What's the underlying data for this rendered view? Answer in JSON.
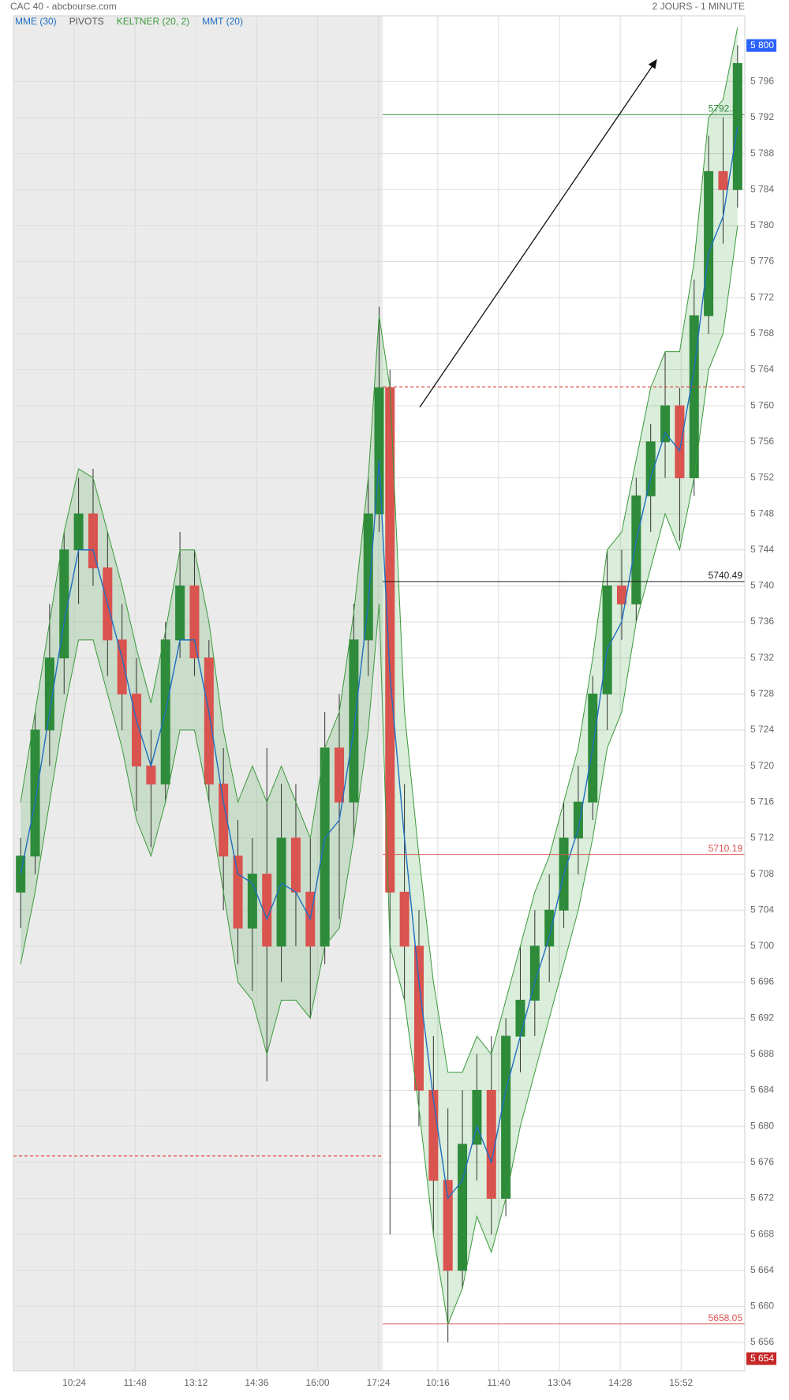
{
  "header": {
    "title": "CAC 40 - abcbourse.com",
    "period": "2 JOURS - 1 MINUTE"
  },
  "chart_data": {
    "type": "candlestick",
    "xlim": [
      0,
      1010
    ],
    "ylim": [
      5652.85,
      5803.3
    ],
    "grid": true,
    "up_color": "#2e8b3a",
    "down_color": "#d9534f",
    "xticks": [
      {
        "value": 84,
        "label": "10:24"
      },
      {
        "value": 168,
        "label": "11:48"
      },
      {
        "value": 252,
        "label": "13:12"
      },
      {
        "value": 336,
        "label": "14:36"
      },
      {
        "value": 420,
        "label": "16:00"
      },
      {
        "value": 504,
        "label": "17:24"
      },
      {
        "value": 586,
        "label": "10:16"
      },
      {
        "value": 670,
        "label": "11:40"
      },
      {
        "value": 754,
        "label": "13:04"
      },
      {
        "value": 838,
        "label": "14:28"
      },
      {
        "value": 922,
        "label": "15:52"
      }
    ],
    "yticks": [
      {
        "value": 5656,
        "label": "5 656"
      },
      {
        "value": 5660,
        "label": "5 660"
      },
      {
        "value": 5664,
        "label": "5 664"
      },
      {
        "value": 5668,
        "label": "5 668"
      },
      {
        "value": 5672,
        "label": "5 672"
      },
      {
        "value": 5676,
        "label": "5 676"
      },
      {
        "value": 5680,
        "label": "5 680"
      },
      {
        "value": 5684,
        "label": "5 684"
      },
      {
        "value": 5688,
        "label": "5 688"
      },
      {
        "value": 5692,
        "label": "5 692"
      },
      {
        "value": 5696,
        "label": "5 696"
      },
      {
        "value": 5700,
        "label": "5 700"
      },
      {
        "value": 5704,
        "label": "5 704"
      },
      {
        "value": 5708,
        "label": "5 708"
      },
      {
        "value": 5712,
        "label": "5 712"
      },
      {
        "value": 5716,
        "label": "5 716"
      },
      {
        "value": 5720,
        "label": "5 720"
      },
      {
        "value": 5724,
        "label": "5 724"
      },
      {
        "value": 5728,
        "label": "5 728"
      },
      {
        "value": 5732,
        "label": "5 732"
      },
      {
        "value": 5736,
        "label": "5 736"
      },
      {
        "value": 5740,
        "label": "5 740"
      },
      {
        "value": 5744,
        "label": "5 744"
      },
      {
        "value": 5748,
        "label": "5 748"
      },
      {
        "value": 5752,
        "label": "5 752"
      },
      {
        "value": 5756,
        "label": "5 756"
      },
      {
        "value": 5760,
        "label": "5 760"
      },
      {
        "value": 5764,
        "label": "5 764"
      },
      {
        "value": 5768,
        "label": "5 768"
      },
      {
        "value": 5772,
        "label": "5 772"
      },
      {
        "value": 5776,
        "label": "5 776"
      },
      {
        "value": 5780,
        "label": "5 780"
      },
      {
        "value": 5784,
        "label": "5 784"
      },
      {
        "value": 5788,
        "label": "5 788"
      },
      {
        "value": 5792,
        "label": "5 792"
      },
      {
        "value": 5796,
        "label": "5 796"
      }
    ],
    "x": [
      10,
      30,
      50,
      70,
      90,
      110,
      130,
      150,
      170,
      190,
      210,
      230,
      250,
      270,
      290,
      310,
      330,
      350,
      370,
      390,
      410,
      430,
      450,
      470,
      490,
      505,
      520,
      540,
      560,
      580,
      600,
      620,
      640,
      660,
      680,
      700,
      720,
      740,
      760,
      780,
      800,
      820,
      840,
      860,
      880,
      900,
      920,
      940,
      960,
      980,
      1000
    ],
    "open": [
      5706,
      5710,
      5724,
      5732,
      5744,
      5748,
      5742,
      5734,
      5728,
      5720,
      5718,
      5734,
      5740,
      5732,
      5718,
      5710,
      5702,
      5708,
      5700,
      5712,
      5706,
      5700,
      5722,
      5716,
      5734,
      5748,
      5762,
      5706,
      5700,
      5684,
      5674,
      5664,
      5678,
      5684,
      5672,
      5690,
      5694,
      5700,
      5704,
      5712,
      5716,
      5728,
      5740,
      5738,
      5750,
      5756,
      5760,
      5752,
      5770,
      5786,
      5784
    ],
    "high": [
      5712,
      5726,
      5738,
      5746,
      5752,
      5753,
      5746,
      5738,
      5732,
      5724,
      5736,
      5746,
      5744,
      5734,
      5722,
      5714,
      5712,
      5722,
      5718,
      5718,
      5712,
      5726,
      5728,
      5738,
      5752,
      5771,
      5764,
      5718,
      5704,
      5690,
      5682,
      5684,
      5688,
      5690,
      5692,
      5700,
      5704,
      5708,
      5716,
      5720,
      5730,
      5744,
      5744,
      5752,
      5758,
      5766,
      5762,
      5774,
      5790,
      5792,
      5800
    ],
    "low": [
      5702,
      5708,
      5720,
      5728,
      5738,
      5740,
      5730,
      5724,
      5715,
      5711,
      5716,
      5732,
      5730,
      5716,
      5704,
      5698,
      5695,
      5685,
      5696,
      5700,
      5692,
      5698,
      5703,
      5712,
      5730,
      5746,
      5668,
      5694,
      5680,
      5668,
      5656,
      5662,
      5674,
      5668,
      5670,
      5686,
      5690,
      5696,
      5702,
      5708,
      5714,
      5724,
      5734,
      5736,
      5746,
      5752,
      5745,
      5750,
      5768,
      5778,
      5782
    ],
    "close": [
      5710,
      5724,
      5732,
      5744,
      5748,
      5742,
      5734,
      5728,
      5720,
      5718,
      5734,
      5740,
      5732,
      5718,
      5710,
      5702,
      5708,
      5700,
      5712,
      5706,
      5700,
      5722,
      5716,
      5734,
      5748,
      5762,
      5706,
      5700,
      5684,
      5674,
      5664,
      5678,
      5684,
      5672,
      5690,
      5694,
      5700,
      5704,
      5712,
      5716,
      5728,
      5740,
      5738,
      5750,
      5756,
      5760,
      5752,
      5770,
      5786,
      5784,
      5798
    ],
    "indicators": [
      {
        "name": "MME (30)",
        "color": "#1f6fbf",
        "values": [
          5708,
          5716,
          5726,
          5736,
          5744,
          5744,
          5738,
          5732,
          5725,
          5720,
          5726,
          5734,
          5734,
          5726,
          5716,
          5708,
          5707,
          5703,
          5707,
          5706,
          5703,
          5712,
          5714,
          5724,
          5738,
          5754,
          5730,
          5712,
          5696,
          5683,
          5672,
          5674,
          5680,
          5676,
          5684,
          5690,
          5696,
          5701,
          5708,
          5713,
          5722,
          5733,
          5736,
          5745,
          5752,
          5757,
          5755,
          5764,
          5777,
          5781,
          5791
        ]
      },
      {
        "name": "PIVOTS",
        "color": "#555555"
      },
      {
        "name": "KELTNER (20, 2)",
        "color": "#3a9a3a",
        "upper": [
          5716,
          5726,
          5736,
          5746,
          5753,
          5752,
          5746,
          5740,
          5733,
          5727,
          5735,
          5744,
          5744,
          5736,
          5724,
          5716,
          5720,
          5716,
          5720,
          5716,
          5712,
          5722,
          5726,
          5737,
          5752,
          5770,
          5762,
          5726,
          5710,
          5696,
          5686,
          5686,
          5690,
          5688,
          5694,
          5700,
          5706,
          5710,
          5716,
          5722,
          5732,
          5744,
          5746,
          5754,
          5762,
          5766,
          5766,
          5776,
          5792,
          5794,
          5802
        ],
        "lower": [
          5698,
          5706,
          5716,
          5726,
          5734,
          5734,
          5728,
          5722,
          5714,
          5710,
          5716,
          5724,
          5724,
          5716,
          5706,
          5696,
          5694,
          5688,
          5694,
          5694,
          5692,
          5700,
          5702,
          5712,
          5724,
          5738,
          5700,
          5694,
          5682,
          5668,
          5658,
          5662,
          5670,
          5666,
          5672,
          5680,
          5686,
          5692,
          5698,
          5704,
          5712,
          5722,
          5726,
          5736,
          5742,
          5748,
          5744,
          5752,
          5764,
          5768,
          5780
        ]
      },
      {
        "name": "MMT (20)",
        "color": "#1f6fbf"
      }
    ],
    "sessions": [
      {
        "start": 0,
        "end": 510,
        "reference": 5676.7,
        "shaded": true
      },
      {
        "start": 510,
        "end": 1010,
        "reference": 5762.1,
        "shaded": false
      }
    ],
    "levels": [
      {
        "value": 5792.33,
        "color": "#2e8b3a"
      },
      {
        "value": 5740.49,
        "color": "#222222"
      },
      {
        "value": 5710.19,
        "color": "#d9534f"
      },
      {
        "value": 5658.05,
        "color": "#d9534f"
      }
    ],
    "price_badges": [
      {
        "value": 5800,
        "label": "5 800",
        "color": "#2962ff"
      },
      {
        "value": 5654.2,
        "label": "5 654",
        "color": "#c62828"
      }
    ]
  }
}
